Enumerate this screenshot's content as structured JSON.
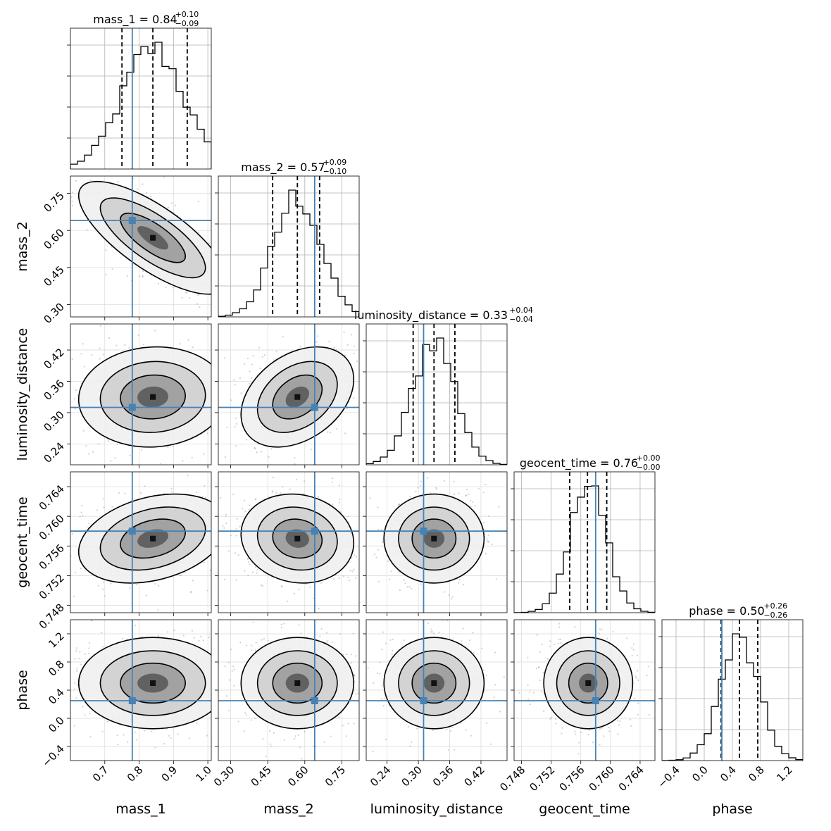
{
  "chart_data": {
    "type": "corner",
    "parameters": [
      {
        "key": "mass_1",
        "label": "mass_1",
        "title": "mass_1 = 0.84",
        "median": 0.84,
        "err_plus": "+0.10",
        "err_minus": "−0.09",
        "q_lo": 0.75,
        "q_hi": 0.94,
        "truth": 0.78,
        "range": [
          0.6,
          1.01
        ],
        "ticks": [
          0.7,
          0.8,
          0.9,
          1.0
        ],
        "tick_labels": [
          "0.7",
          "0.8",
          "0.9",
          "1.0"
        ],
        "mean": 0.84,
        "sd": 0.09,
        "hist_lo": 0.55,
        "hist_hi": 1.15
      },
      {
        "key": "mass_2",
        "label": "mass_2",
        "title": "mass_2 = 0.57",
        "median": 0.57,
        "err_plus": "+0.09",
        "err_minus": "−0.10",
        "q_lo": 0.47,
        "q_hi": 0.66,
        "truth": 0.64,
        "range": [
          0.25,
          0.82
        ],
        "ticks": [
          0.3,
          0.45,
          0.6,
          0.75
        ],
        "tick_labels": [
          "0.30",
          "0.45",
          "0.60",
          "0.75"
        ],
        "mean": 0.57,
        "sd": 0.095,
        "hist_lo": 0.2,
        "hist_hi": 0.8
      },
      {
        "key": "luminosity_distance",
        "label": "luminosity_distance",
        "title": "luminosity_distance = 0.33",
        "median": 0.33,
        "err_plus": "+0.04",
        "err_minus": "−0.04",
        "q_lo": 0.29,
        "q_hi": 0.37,
        "truth": 0.31,
        "range": [
          0.2,
          0.47
        ],
        "ticks": [
          0.24,
          0.3,
          0.36,
          0.42
        ],
        "tick_labels": [
          "0.24",
          "0.30",
          "0.36",
          "0.42"
        ],
        "mean": 0.33,
        "sd": 0.04,
        "hist_lo": 0.17,
        "hist_hi": 0.5
      },
      {
        "key": "geocent_time",
        "label": "geocent_time",
        "title": "geocent_time = 0.76",
        "median": 0.7569,
        "err_plus": "+0.00",
        "err_minus": "−0.00",
        "q_lo": 0.7545,
        "q_hi": 0.7595,
        "truth": 0.758,
        "range": [
          0.747,
          0.766
        ],
        "ticks": [
          0.748,
          0.752,
          0.756,
          0.76,
          0.764
        ],
        "tick_labels": [
          "0.748",
          "0.752",
          "0.756",
          "0.760",
          "0.764"
        ],
        "mean": 0.757,
        "sd": 0.0025,
        "hist_lo": 0.745,
        "hist_hi": 0.769
      },
      {
        "key": "phase",
        "label": "phase",
        "title": "phase = 0.50",
        "median": 0.5,
        "err_plus": "+0.26",
        "err_minus": "−0.26",
        "q_lo": 0.24,
        "q_hi": 0.76,
        "truth": 0.25,
        "range": [
          -0.6,
          1.4
        ],
        "ticks": [
          -0.4,
          0.0,
          0.4,
          0.8,
          1.2
        ],
        "tick_labels": [
          "−0.4",
          "0.0",
          "0.4",
          "0.8",
          "1.2"
        ],
        "mean": 0.5,
        "sd": 0.27,
        "hist_lo": -0.65,
        "hist_hi": 1.5
      }
    ],
    "correlations": [
      [
        1,
        -0.75,
        0.05,
        0.3,
        0.0
      ],
      [
        -0.75,
        1,
        0.35,
        -0.1,
        0.0
      ],
      [
        0.05,
        0.35,
        1,
        0.0,
        0.0
      ],
      [
        0.3,
        -0.1,
        0.0,
        1,
        0.0
      ],
      [
        0.0,
        0.0,
        0.0,
        0.0,
        1
      ]
    ],
    "colors": {
      "truth": "#4682b4",
      "hist": "#000000",
      "grid": "#b0b0b0",
      "quantile": "#000000"
    },
    "grid": true
  }
}
